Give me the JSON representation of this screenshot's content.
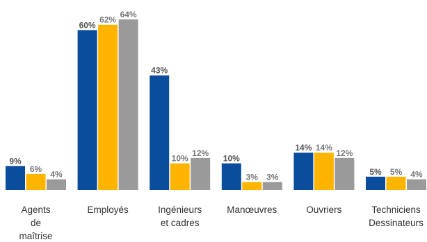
{
  "chart_data": {
    "type": "bar",
    "categories": [
      {
        "lines": [
          "Agents",
          "de",
          "maîtrise"
        ]
      },
      {
        "lines": [
          "Employés"
        ]
      },
      {
        "lines": [
          "Ingénieurs",
          "et cadres"
        ]
      },
      {
        "lines": [
          "Manœuvres"
        ]
      },
      {
        "lines": [
          "Ouvriers"
        ]
      },
      {
        "lines": [
          "Techniciens",
          "Dessinateurs"
        ]
      }
    ],
    "series": [
      {
        "values": [
          9,
          60,
          43,
          10,
          14,
          5
        ],
        "labels": [
          "9%",
          "60%",
          "43%",
          "10%",
          "14%",
          "5%"
        ],
        "color": "#0a4d9c",
        "label_color": "#555555"
      },
      {
        "values": [
          6,
          62,
          10,
          3,
          14,
          5
        ],
        "labels": [
          "6%",
          "62%",
          "10%",
          "3%",
          "14%",
          "5%"
        ],
        "color": "#ffb400",
        "label_color": "#777777"
      },
      {
        "values": [
          4,
          64,
          12,
          3,
          12,
          4
        ],
        "labels": [
          "4%",
          "64%",
          "12%",
          "3%",
          "12%",
          "4%"
        ],
        "color": "#9a9a9a",
        "label_color": "#777777"
      }
    ],
    "ylim": [
      0,
      64
    ],
    "grid": false,
    "legend": "none"
  }
}
